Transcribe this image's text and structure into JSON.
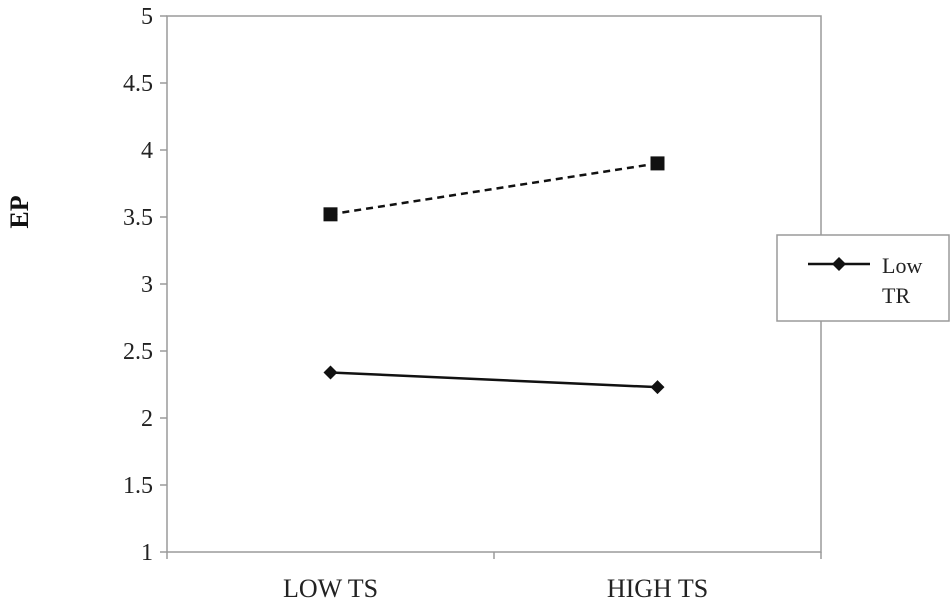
{
  "chart_data": {
    "type": "line",
    "categories": [
      "LOW TS",
      "HIGH TS"
    ],
    "series": [
      {
        "name": "Low TR",
        "values": [
          2.34,
          2.23
        ],
        "marker": "diamond",
        "dash": "solid",
        "color": "#111111"
      },
      {
        "values": [
          3.52,
          3.9
        ],
        "marker": "square",
        "dash": "dashed",
        "color": "#111111"
      }
    ],
    "ylabel": "EP",
    "xlabel": "",
    "ylim": [
      1,
      5
    ],
    "yticks": [
      "1",
      "1.5",
      "2",
      "2.5",
      "3",
      "3.5",
      "4",
      "4.5",
      "5"
    ],
    "grid": false,
    "legend_position": "right",
    "legend_lines": [
      "Low",
      "TR"
    ]
  }
}
